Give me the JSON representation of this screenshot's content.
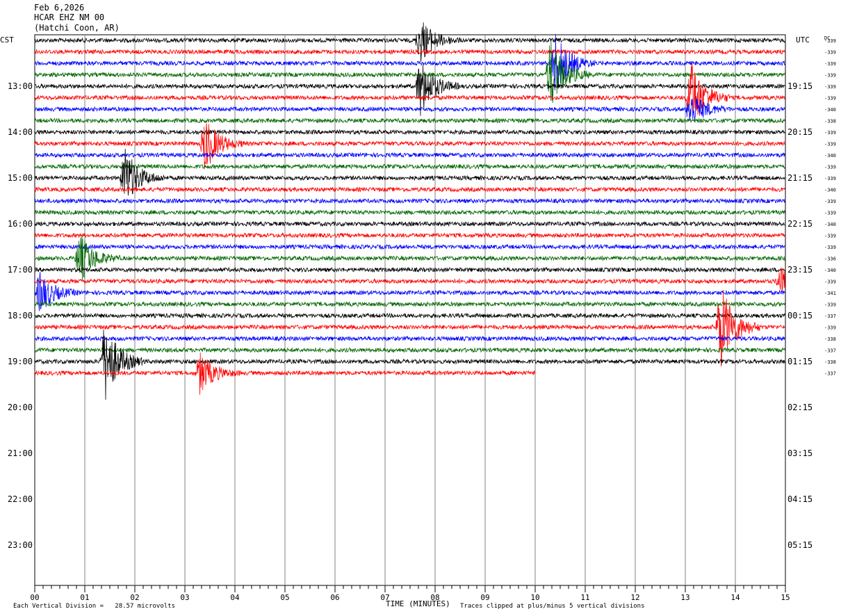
{
  "header": {
    "date": "Feb 6,2026",
    "station": "HCAR EHZ NM 00",
    "location": "(Hatchi Coon, AR)"
  },
  "left_axis_label": "CST",
  "right_axis_label": "UTC",
  "dc_label": "DC",
  "footer": {
    "x_title": "TIME (MINUTES)",
    "scale_note": "Each Vertical Division =   28.57 microvolts",
    "clip_note": "Traces clipped at plus/minus 5 vertical divisions"
  },
  "colors": {
    "trace_cycle": [
      "#000000",
      "#ff0000",
      "#0000ff",
      "#006600"
    ],
    "grid": "#808080"
  },
  "chart_data": {
    "type": "line",
    "title": "HCAR EHZ NM 00",
    "xlabel": "TIME (MINUTES)",
    "xlim": [
      0,
      15
    ],
    "x_ticks": [
      "00",
      "01",
      "02",
      "03",
      "04",
      "05",
      "06",
      "07",
      "08",
      "09",
      "10",
      "11",
      "12",
      "13",
      "14",
      "15"
    ],
    "cst_hour_labels": [
      "13:00",
      "14:00",
      "15:00",
      "16:00",
      "17:00",
      "18:00",
      "19:00",
      "20:00",
      "21:00",
      "22:00",
      "23:00"
    ],
    "utc_hour_labels": [
      "19:15",
      "20:15",
      "21:15",
      "22:15",
      "23:15",
      "00:15",
      "01:15",
      "02:15",
      "03:15",
      "04:15",
      "05:15"
    ],
    "trace_interval_minutes": 15,
    "trace_count": 30,
    "last_trace_end_minute": 10,
    "dc_offsets": [
      -339,
      -339,
      -339,
      -339,
      -339,
      -339,
      -340,
      -338,
      -339,
      -339,
      -340,
      -339,
      -339,
      -340,
      -339,
      -339,
      -340,
      -339,
      -339,
      -336,
      -340,
      -339,
      -341,
      -339,
      -337,
      -339,
      -338,
      -337,
      -338,
      -337
    ],
    "events": [
      {
        "trace": 0,
        "minute": 7.7,
        "amp": 2.0
      },
      {
        "trace": 4,
        "minute": 7.7,
        "amp": 2.6
      },
      {
        "trace": 2,
        "minute": 10.4,
        "amp": 2.8
      },
      {
        "trace": 3,
        "minute": 10.3,
        "amp": 3.2
      },
      {
        "trace": 5,
        "minute": 13.1,
        "amp": 3.4
      },
      {
        "trace": 6,
        "minute": 13.1,
        "amp": 1.6
      },
      {
        "trace": 9,
        "minute": 3.4,
        "amp": 2.4
      },
      {
        "trace": 12,
        "minute": 1.8,
        "amp": 2.6
      },
      {
        "trace": 19,
        "minute": 0.9,
        "amp": 2.2
      },
      {
        "trace": 22,
        "minute": 0.1,
        "amp": 1.8
      },
      {
        "trace": 21,
        "minute": 14.9,
        "amp": 1.2
      },
      {
        "trace": 25,
        "minute": 13.7,
        "amp": 4.0
      },
      {
        "trace": 28,
        "minute": 1.4,
        "amp": 3.6
      },
      {
        "trace": 29,
        "minute": 3.3,
        "amp": 1.8
      }
    ]
  }
}
